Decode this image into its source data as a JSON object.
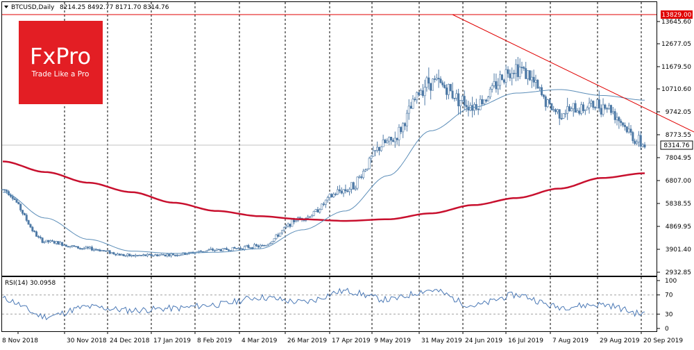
{
  "header": {
    "symbol": "BTCUSD,Daily",
    "ohlc": "8214.25 8492.77 8171.70 8314.76"
  },
  "logo": {
    "brand": "FxPro",
    "tagline": "Trade Like a Pro",
    "color": "#e31e24"
  },
  "price_axis": {
    "ticks": [
      "13645.60",
      "12677.05",
      "11679.50",
      "10710.60",
      "9742.05",
      "8773.55",
      "7804.95",
      "6807.00",
      "5838.55",
      "4869.95",
      "3901.40",
      "2932.85"
    ],
    "last_price_label": "8314.76",
    "resistance_label": "13829.00"
  },
  "rsi": {
    "label": "RSI(14) 30.0958",
    "levels": [
      "100",
      "70",
      "30",
      "0"
    ]
  },
  "dates": [
    "8 Nov 2018",
    "30 Nov 2018",
    "24 Dec 2018",
    "17 Jan 2019",
    "8 Feb 2019",
    "4 Mar 2019",
    "26 Mar 2019",
    "17 Apr 2019",
    "9 May 2019",
    "31 May 2019",
    "24 Jun 2019",
    "16 Jul 2019",
    "7 Aug 2019",
    "29 Aug 2019",
    "20 Sep 2019"
  ],
  "colors": {
    "candle": "#4f7aa6",
    "ma_fast": "#5b8db8",
    "ma_slow": "#c8102e",
    "trendline": "#e00000",
    "resistance": "#e00000",
    "rsi_line": "#4a78b5"
  },
  "chart_data": {
    "type": "line",
    "series_description": "candlestick price with moving averages",
    "x": [
      "2018-11-08",
      "2018-11-30",
      "2018-12-24",
      "2019-01-17",
      "2019-02-08",
      "2019-03-04",
      "2019-03-26",
      "2019-04-17",
      "2019-05-09",
      "2019-05-31",
      "2019-06-24",
      "2019-07-16",
      "2019-08-07",
      "2019-08-29",
      "2019-09-20",
      "2019-09-27"
    ],
    "close": [
      6400,
      4200,
      3900,
      3600,
      3650,
      3850,
      4000,
      5200,
      6400,
      8400,
      11000,
      10000,
      11600,
      9700,
      10000,
      8314.76
    ],
    "ma_fast": [
      6300,
      5200,
      4300,
      3800,
      3700,
      3750,
      3900,
      4700,
      5500,
      7000,
      8900,
      9900,
      10500,
      10650,
      10400,
      10200
    ],
    "ma_slow": [
      7600,
      7150,
      6700,
      6300,
      5850,
      5500,
      5280,
      5150,
      5080,
      5150,
      5400,
      5750,
      6050,
      6450,
      6900,
      7100
    ],
    "resistance": 13829.0,
    "trendline": [
      [
        "2019-06-26",
        13829
      ],
      [
        "2019-09-27",
        9600
      ]
    ],
    "ylim": [
      2932.85,
      14200
    ],
    "rsi": [
      62,
      25,
      45,
      38,
      42,
      50,
      65,
      55,
      78,
      60,
      80,
      48,
      70,
      45,
      50,
      30
    ],
    "rsi_ylim": [
      0,
      100
    ],
    "grid": true
  }
}
